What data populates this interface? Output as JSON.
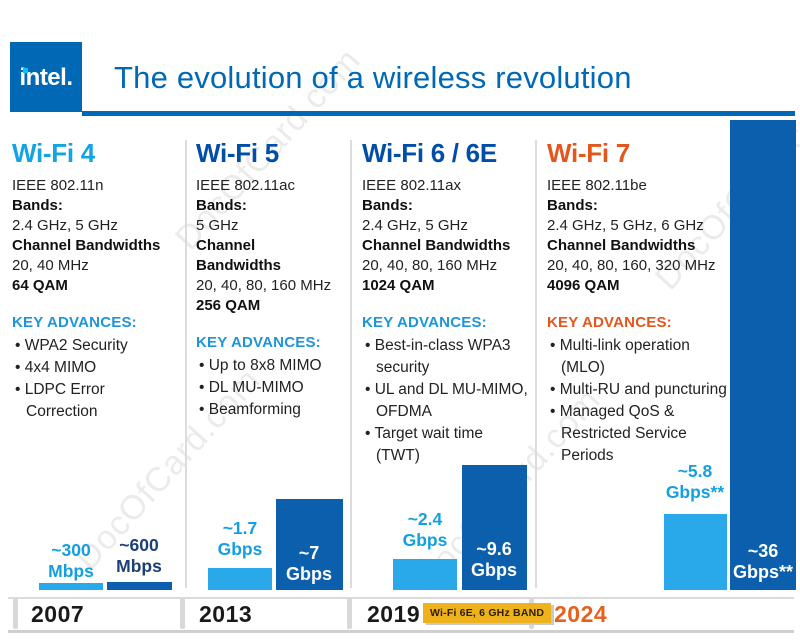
{
  "watermark_text": "DocOfCard.com",
  "header": {
    "logo_text": "intel.",
    "title": "The evolution of a wireless revolution",
    "brand_color": "#0068B5"
  },
  "colors": {
    "light_blue_accent": "#14A3E4",
    "dark_blue_title": "#004EA8",
    "orange_accent": "#E3571C",
    "light_blue_bar": "#29A9EA",
    "dark_blue_bar": "#0B5FAC",
    "navy_bar_label": "#1C3F77",
    "badge_yellow": "#EDB21C",
    "year_orange": "#E8611C"
  },
  "columns": [
    {
      "title": "Wi-Fi 4",
      "standard": "IEEE 802.11n",
      "bands_label": "Bands:",
      "bands": "2.4 GHz, 5 GHz",
      "bandwidths_label": "Channel Bandwidths",
      "bandwidths": "20, 40 MHz",
      "qam": "64 QAM",
      "key_advances_label": "KEY ADVANCES:",
      "key_advances": [
        "WPA2 Security",
        "4x4 MIMO",
        "LDPC Error Correction"
      ],
      "year": "2007",
      "bars": [
        {
          "name": "typical-speed",
          "value_gbps": 0.3,
          "label": "~300\nMbps",
          "display": "~300 Mbps"
        },
        {
          "name": "max-speed",
          "value_gbps": 0.6,
          "label": "~600\nMbps",
          "display": "~600 Mbps"
        }
      ]
    },
    {
      "title": "Wi-Fi 5",
      "standard": "IEEE 802.11ac",
      "bands_label": "Bands:",
      "bands": "5 GHz",
      "bandwidths_label": "Channel Bandwidths",
      "bandwidths": "20, 40, 80, 160 MHz",
      "qam": "256 QAM",
      "key_advances_label": "KEY ADVANCES:",
      "key_advances": [
        "Up to 8x8 MIMO",
        "DL MU-MIMO",
        "Beamforming"
      ],
      "year": "2013",
      "bars": [
        {
          "name": "typical-speed",
          "value_gbps": 1.7,
          "label": "~1.7\nGbps",
          "display": "~1.7 Gbps"
        },
        {
          "name": "max-speed",
          "value_gbps": 7,
          "label": "~7\nGbps",
          "display": "~7 Gbps"
        }
      ]
    },
    {
      "title": "Wi-Fi 6 / 6E",
      "standard": "IEEE 802.11ax",
      "bands_label": "Bands:",
      "bands": "2.4 GHz, 5 GHz",
      "bandwidths_label": "Channel Bandwidths",
      "bandwidths": "20, 40, 80, 160 MHz",
      "qam": "1024 QAM",
      "key_advances_label": "KEY ADVANCES:",
      "key_advances": [
        "Best-in-class WPA3 security",
        "UL and DL MU-MIMO, OFDMA",
        "Target wait time (TWT)"
      ],
      "year": "2019",
      "bars": [
        {
          "name": "typical-speed",
          "value_gbps": 2.4,
          "label": "~2.4\nGbps",
          "display": "~2.4 Gbps"
        },
        {
          "name": "max-speed",
          "value_gbps": 9.6,
          "label": "~9.6\nGbps",
          "display": "~9.6 Gbps"
        }
      ]
    },
    {
      "title": "Wi-Fi 7",
      "standard": "IEEE 802.11be",
      "bands_label": "Bands:",
      "bands": "2.4 GHz, 5 GHz, 6 GHz",
      "bandwidths_label": "Channel Bandwidths",
      "bandwidths": "20, 40, 80, 160, 320 MHz",
      "qam": "4096 QAM",
      "key_advances_label": "KEY ADVANCES:",
      "key_advances": [
        "Multi-link operation (MLO)",
        "Multi-RU and puncturing",
        "Managed QoS & Restricted Service Periods"
      ],
      "year": "2024",
      "bars": [
        {
          "name": "typical-speed",
          "value_gbps": 5.8,
          "label": "~5.8\nGbps**",
          "display": "~5.8 Gbps**"
        },
        {
          "name": "max-speed",
          "value_gbps": 36,
          "label": "~36\nGbps**",
          "display": "~36 Gbps**"
        }
      ]
    }
  ],
  "timeline": {
    "badge_text": "Wi-Fi 6E, 6 GHz BAND"
  },
  "chart_data": {
    "type": "bar",
    "title": "The evolution of a wireless revolution",
    "categories": [
      "Wi-Fi 4 (2007)",
      "Wi-Fi 5 (2013)",
      "Wi-Fi 6 / 6E (2019)",
      "Wi-Fi 7 (2024)"
    ],
    "series": [
      {
        "name": "Lower bar (light blue) max rate",
        "values_gbps": [
          0.3,
          1.7,
          2.4,
          5.8
        ]
      },
      {
        "name": "Upper bar (dark blue) max rate",
        "values_gbps": [
          0.6,
          7,
          9.6,
          36
        ]
      }
    ],
    "value_labels": [
      [
        "~300 Mbps",
        "~600 Mbps"
      ],
      [
        "~1.7 Gbps",
        "~7 Gbps"
      ],
      [
        "~2.4 Gbps",
        "~9.6 Gbps"
      ],
      [
        "~5.8 Gbps**",
        "~36 Gbps**"
      ]
    ],
    "unit": "Gbps",
    "ylim": [
      0,
      36
    ],
    "grid": false,
    "legend_position": "none",
    "x_axis_tick_labels": [
      "2007",
      "2013",
      "2019",
      "2024"
    ]
  }
}
